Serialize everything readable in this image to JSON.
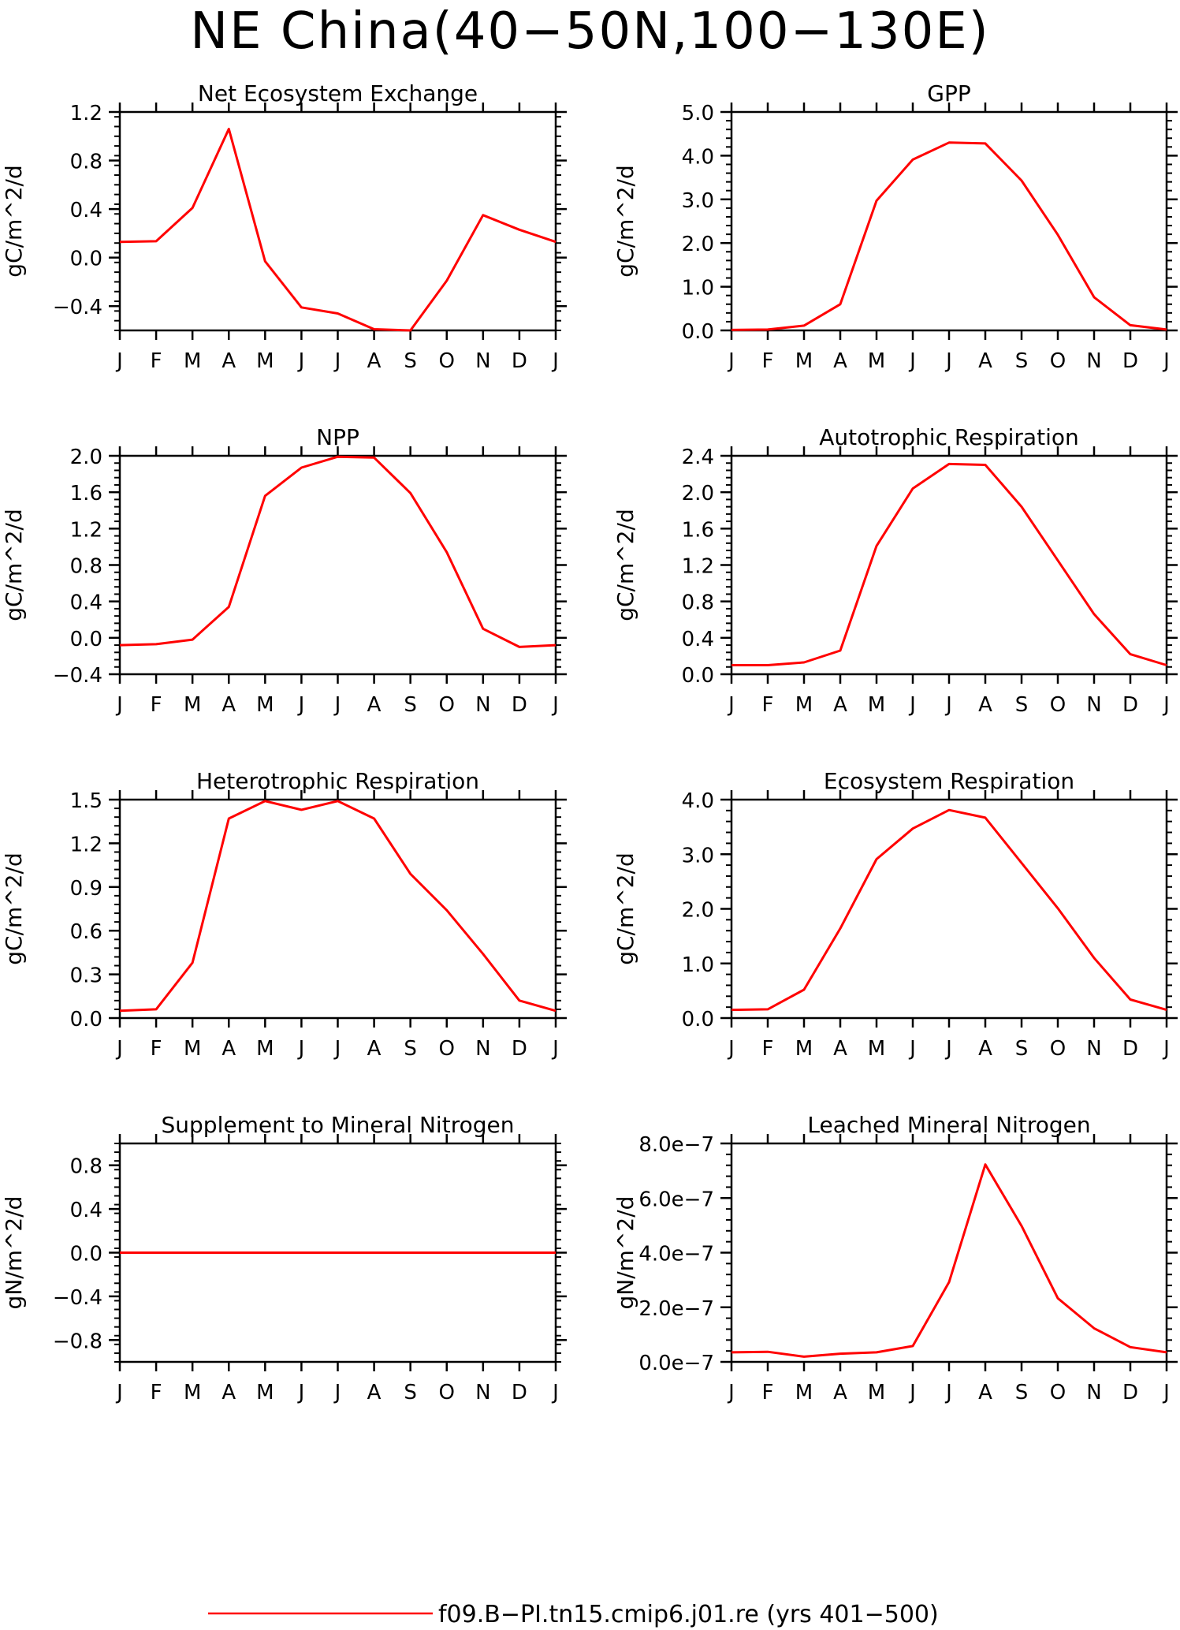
{
  "title": "NE China(40−50N,100−130E)",
  "legend": {
    "label": "f09.B−PI.tn15.cmip6.j01.re (yrs 401−500)",
    "color": "#ff0000",
    "placement": "bottom-center"
  },
  "months": [
    "J",
    "F",
    "M",
    "A",
    "M",
    "J",
    "J",
    "A",
    "S",
    "O",
    "N",
    "D",
    "J"
  ],
  "chart_data": [
    {
      "type": "line",
      "title": "Net Ecosystem Exchange",
      "ylabel": "gC/m^2/d",
      "categories": [
        "J",
        "F",
        "M",
        "A",
        "M",
        "J",
        "J",
        "A",
        "S",
        "O",
        "N",
        "D",
        "J"
      ],
      "ylim": [
        -0.6,
        1.2
      ],
      "yticks": [
        "1.2",
        "0.8",
        "0.4",
        "0.0",
        "−0.4"
      ],
      "series": [
        {
          "color": "#ff0000",
          "values": [
            0.13,
            0.135,
            0.41,
            1.06,
            -0.03,
            -0.41,
            -0.46,
            -0.59,
            -0.6,
            -0.19,
            0.35,
            0.23,
            0.13
          ]
        }
      ]
    },
    {
      "type": "line",
      "title": "GPP",
      "ylabel": "gC/m^2/d",
      "categories": [
        "J",
        "F",
        "M",
        "A",
        "M",
        "J",
        "J",
        "A",
        "S",
        "O",
        "N",
        "D",
        "J"
      ],
      "ylim": [
        0,
        5
      ],
      "yticks": [
        "5.0",
        "4.0",
        "3.0",
        "2.0",
        "1.0",
        "0.0"
      ],
      "series": [
        {
          "color": "#ff0000",
          "values": [
            0.01,
            0.02,
            0.11,
            0.6,
            2.97,
            3.91,
            4.3,
            4.28,
            3.43,
            2.19,
            0.76,
            0.12,
            0.02
          ]
        }
      ]
    },
    {
      "type": "line",
      "title": "NPP",
      "ylabel": "gC/m^2/d",
      "categories": [
        "J",
        "F",
        "M",
        "A",
        "M",
        "J",
        "J",
        "A",
        "S",
        "O",
        "N",
        "D",
        "J"
      ],
      "ylim": [
        -0.4,
        2.0
      ],
      "yticks": [
        "2.0",
        "1.6",
        "1.2",
        "0.8",
        "0.4",
        "0.0",
        "−0.4"
      ],
      "series": [
        {
          "color": "#ff0000",
          "values": [
            -0.08,
            -0.07,
            -0.02,
            0.34,
            1.56,
            1.87,
            1.99,
            1.98,
            1.59,
            0.94,
            0.1,
            -0.1,
            -0.08
          ]
        }
      ]
    },
    {
      "type": "line",
      "title": "Autotrophic Respiration",
      "ylabel": "gC/m^2/d",
      "categories": [
        "J",
        "F",
        "M",
        "A",
        "M",
        "J",
        "J",
        "A",
        "S",
        "O",
        "N",
        "D",
        "J"
      ],
      "ylim": [
        0,
        2.4
      ],
      "yticks": [
        "2.4",
        "2.0",
        "1.6",
        "1.2",
        "0.8",
        "0.4",
        "0.0"
      ],
      "series": [
        {
          "color": "#ff0000",
          "values": [
            0.1,
            0.1,
            0.13,
            0.26,
            1.41,
            2.04,
            2.31,
            2.3,
            1.84,
            1.25,
            0.66,
            0.22,
            0.1
          ]
        }
      ]
    },
    {
      "type": "line",
      "title": "Heterotrophic Respiration",
      "ylabel": "gC/m^2/d",
      "categories": [
        "J",
        "F",
        "M",
        "A",
        "M",
        "J",
        "J",
        "A",
        "S",
        "O",
        "N",
        "D",
        "J"
      ],
      "ylim": [
        0,
        1.5
      ],
      "yticks": [
        "1.5",
        "1.2",
        "0.9",
        "0.6",
        "0.3",
        "0.0"
      ],
      "series": [
        {
          "color": "#ff0000",
          "values": [
            0.05,
            0.06,
            0.38,
            1.37,
            1.49,
            1.43,
            1.49,
            1.37,
            0.99,
            0.74,
            0.44,
            0.12,
            0.05
          ]
        }
      ]
    },
    {
      "type": "line",
      "title": "Ecosystem Respiration",
      "ylabel": "gC/m^2/d",
      "categories": [
        "J",
        "F",
        "M",
        "A",
        "M",
        "J",
        "J",
        "A",
        "S",
        "O",
        "N",
        "D",
        "J"
      ],
      "ylim": [
        0,
        4
      ],
      "yticks": [
        "4.0",
        "3.0",
        "2.0",
        "1.0",
        "0.0"
      ],
      "series": [
        {
          "color": "#ff0000",
          "values": [
            0.15,
            0.16,
            0.52,
            1.64,
            2.91,
            3.47,
            3.81,
            3.67,
            2.84,
            2.01,
            1.1,
            0.34,
            0.15
          ]
        }
      ]
    },
    {
      "type": "line",
      "title": "Supplement to Mineral Nitrogen",
      "ylabel": "gN/m^2/d",
      "categories": [
        "J",
        "F",
        "M",
        "A",
        "M",
        "J",
        "J",
        "A",
        "S",
        "O",
        "N",
        "D",
        "J"
      ],
      "ylim": [
        -1.0,
        1.0
      ],
      "yticks": [
        "0.8",
        "0.4",
        "0.0",
        "−0.4",
        "−0.8"
      ],
      "series": [
        {
          "color": "#ff0000",
          "values": [
            0,
            0,
            0,
            0,
            0,
            0,
            0,
            0,
            0,
            0,
            0,
            0,
            0
          ]
        }
      ]
    },
    {
      "type": "line",
      "title": "Leached Mineral Nitrogen",
      "ylabel": "gN/m^2/d",
      "categories": [
        "J",
        "F",
        "M",
        "A",
        "M",
        "J",
        "J",
        "A",
        "S",
        "O",
        "N",
        "D",
        "J"
      ],
      "ylim": [
        0,
        8e-07
      ],
      "yticks": [
        "8.0e−7",
        "6.0e−7",
        "4.0e−7",
        "2.0e−7",
        "0.0e−7"
      ],
      "series": [
        {
          "color": "#ff0000",
          "values": [
            3.5e-08,
            3.7e-08,
            1.9e-08,
            3e-08,
            3.5e-08,
            5.8e-08,
            2.92e-07,
            7.23e-07,
            4.98e-07,
            2.33e-07,
            1.23e-07,
            5.4e-08,
            3.5e-08
          ]
        }
      ]
    }
  ]
}
